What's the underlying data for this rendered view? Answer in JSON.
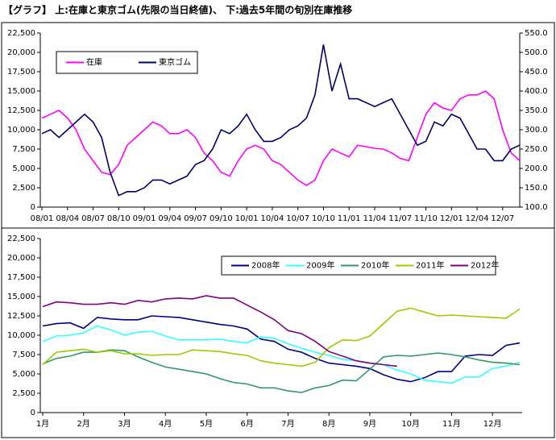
{
  "title": "【グラフ】 上:在庫と東京ゴム(先限の当日終値)、 下:過去5年間の旬別在庫推移",
  "chart_data": [
    {
      "type": "line",
      "categories": [
        "08/01",
        null,
        null,
        "08/04",
        null,
        null,
        "08/07",
        null,
        null,
        "08/10",
        null,
        null,
        "09/01",
        null,
        null,
        "09/04",
        null,
        null,
        "09/07",
        null,
        null,
        "09/10",
        null,
        null,
        "10/01",
        null,
        null,
        "10/04",
        null,
        null,
        "10/07",
        null,
        null,
        "10/10",
        null,
        null,
        "11/01",
        null,
        null,
        "11/04",
        null,
        null,
        "11/07",
        null,
        null,
        "11/10",
        null,
        null,
        "12/01",
        null,
        null,
        "12/04",
        null,
        null,
        "12/07",
        null,
        null
      ],
      "series": [
        {
          "name": "在庫",
          "color": "#ff00ff",
          "values": [
            11500,
            12000,
            12500,
            11500,
            10000,
            7500,
            6000,
            4500,
            4200,
            5500,
            8000,
            9000,
            10000,
            11000,
            10500,
            9500,
            9500,
            10000,
            9000,
            7000,
            6000,
            4500,
            4000,
            6000,
            7500,
            8000,
            7500,
            6000,
            5500,
            4500,
            3500,
            2800,
            3500,
            6000,
            7500,
            7000,
            6500,
            8000,
            7800,
            7600,
            7500,
            7000,
            6300,
            6000,
            9000,
            12000,
            13500,
            12800,
            12500,
            14000,
            14500,
            14500,
            15000,
            14000,
            10000,
            7000,
            6000
          ]
        },
        {
          "name": "東京ゴム",
          "color": "#000066",
          "axis": "y2",
          "values": [
            290,
            300,
            280,
            300,
            320,
            340,
            320,
            280,
            190,
            130,
            140,
            140,
            150,
            170,
            170,
            160,
            170,
            180,
            210,
            220,
            250,
            300,
            290,
            310,
            340,
            300,
            270,
            270,
            280,
            300,
            310,
            330,
            390,
            520,
            400,
            470,
            380,
            380,
            370,
            360,
            370,
            380,
            340,
            300,
            260,
            270,
            320,
            310,
            340,
            330,
            290,
            250,
            250,
            220,
            220,
            250,
            260
          ]
        }
      ],
      "ylim": [
        0,
        22500
      ],
      "yticks": [
        0,
        {
          "value": 2500,
          "label": "2,500"
        },
        {
          "value": 5000,
          "label": "5,000"
        },
        {
          "value": 7500,
          "label": "7,500"
        },
        {
          "value": 10000,
          "label": "10,000"
        },
        {
          "value": 12500,
          "label": "12,500"
        },
        {
          "value": 15000,
          "label": "15,000"
        },
        {
          "value": 17500,
          "label": "17,500"
        },
        {
          "value": 20000,
          "label": "20,000"
        },
        {
          "value": 22500,
          "label": "22,500"
        }
      ],
      "y2lim": [
        100,
        550
      ],
      "y2ticks": [
        {
          "value": 100,
          "label": "100.0"
        },
        {
          "value": 150,
          "label": "150.0"
        },
        {
          "value": 200,
          "label": "200.0"
        },
        {
          "value": 250,
          "label": "250.0"
        },
        {
          "value": 300,
          "label": "300.0"
        },
        {
          "value": 350,
          "label": "350.0"
        },
        {
          "value": 400,
          "label": "400.0"
        },
        {
          "value": 450,
          "label": "450.0"
        },
        {
          "value": 500,
          "label": "500.0"
        },
        {
          "value": 550,
          "label": "550.0"
        }
      ],
      "grid": false,
      "legend": "upper left"
    },
    {
      "type": "line",
      "categories": [
        "1月",
        null,
        null,
        "2月",
        null,
        null,
        "3月",
        null,
        null,
        "4月",
        null,
        null,
        "5月",
        null,
        null,
        "6月",
        null,
        null,
        "7月",
        null,
        null,
        "8月",
        null,
        null,
        "9月",
        null,
        null,
        "10月",
        null,
        null,
        "11月",
        null,
        null,
        "12月",
        null,
        null
      ],
      "series": [
        {
          "name": "2008年",
          "color": "#000080",
          "values": [
            11200,
            11500,
            11600,
            10900,
            12300,
            12100,
            12000,
            12000,
            12500,
            12400,
            12300,
            12000,
            11700,
            11400,
            11200,
            10800,
            9500,
            9200,
            8200,
            7800,
            7000,
            6400,
            6200,
            6000,
            5700,
            4900,
            4300,
            4000,
            4500,
            5300,
            5300,
            7300,
            7500,
            7400,
            8700,
            9000
          ]
        },
        {
          "name": "2009年",
          "color": "#33ffff",
          "values": [
            9200,
            9900,
            10000,
            10300,
            11200,
            10700,
            10000,
            10400,
            10500,
            9900,
            9400,
            9400,
            9400,
            9500,
            9200,
            9000,
            9800,
            9600,
            8900,
            8300,
            7800,
            7400,
            6900,
            6700,
            6400,
            6200,
            5500,
            5000,
            4200,
            4000,
            3800,
            4600,
            4600,
            5700,
            6000,
            6500
          ]
        },
        {
          "name": "2010年",
          "color": "#339966",
          "values": [
            6300,
            7000,
            7300,
            7800,
            7800,
            8100,
            8000,
            7200,
            6500,
            5900,
            5600,
            5300,
            5000,
            4400,
            3900,
            3700,
            3200,
            3200,
            2800,
            2600,
            3200,
            3500,
            4200,
            4100,
            5600,
            7200,
            7400,
            7300,
            7500,
            7700,
            7500,
            7200,
            6800,
            6500,
            6400,
            6200
          ]
        },
        {
          "name": "2011年",
          "color": "#99cc00",
          "values": [
            6200,
            7800,
            8000,
            8200,
            7800,
            8000,
            7600,
            7600,
            7400,
            7500,
            7500,
            8100,
            8000,
            7900,
            7600,
            7400,
            6700,
            6400,
            6200,
            6000,
            6500,
            8400,
            9400,
            9300,
            9900,
            11500,
            13100,
            13500,
            13000,
            12500,
            12600,
            12500,
            12400,
            12300,
            12200,
            13400
          ]
        },
        {
          "name": "2012年",
          "color": "#800080",
          "values": [
            13700,
            14300,
            14200,
            14000,
            14000,
            14200,
            14000,
            14500,
            14300,
            14700,
            14800,
            14700,
            15100,
            14800,
            14800,
            13900,
            13000,
            12000,
            10600,
            10200,
            9200,
            7900,
            7300,
            6700,
            6400,
            6200,
            6000,
            null,
            null,
            null,
            null,
            null,
            null,
            null,
            null,
            null
          ]
        }
      ],
      "ylim": [
        0,
        22500
      ],
      "yticks": [
        0,
        {
          "value": 2500,
          "label": "2,500"
        },
        {
          "value": 5000,
          "label": "5,000"
        },
        {
          "value": 7500,
          "label": "7,500"
        },
        {
          "value": 10000,
          "label": "10,000"
        },
        {
          "value": 12500,
          "label": "12,500"
        },
        {
          "value": 15000,
          "label": "15,000"
        },
        {
          "value": 17500,
          "label": "17,500"
        },
        {
          "value": 20000,
          "label": "20,000"
        },
        {
          "value": 22500,
          "label": "22,500"
        }
      ],
      "grid": false,
      "legend": "upper right"
    }
  ]
}
